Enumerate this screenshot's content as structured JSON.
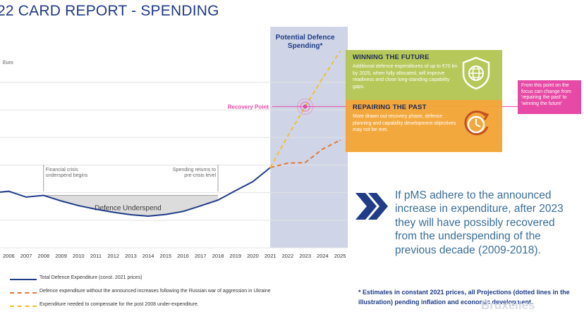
{
  "page": {
    "title": "22 CARD REPORT - SPENDING"
  },
  "chart_data": {
    "type": "line",
    "y_unit_label": "Euro",
    "x_ticks": [
      "2006",
      "2007",
      "2008",
      "2009",
      "2010",
      "2011",
      "2012",
      "2013",
      "2014",
      "2015",
      "2016",
      "2017",
      "2018",
      "2019",
      "2020",
      "2021",
      "2022",
      "2023",
      "2024",
      "2025"
    ],
    "series": [
      {
        "name": "Total Defence Expenditure (const. 2021 prices)",
        "style": "solid",
        "color": "#1f3c88",
        "x": [
          2005.5,
          2006,
          2007,
          2008,
          2009,
          2010,
          2011,
          2012,
          2013,
          2014,
          2015,
          2016,
          2017,
          2018,
          2019,
          2020,
          2021
        ],
        "values": [
          2.02,
          2.05,
          1.84,
          1.9,
          1.7,
          1.53,
          1.4,
          1.29,
          1.2,
          1.15,
          1.21,
          1.32,
          1.52,
          1.73,
          2.07,
          2.4,
          2.91
        ]
      },
      {
        "name": "Defence expenditure without the announced increases following the Russian war of aggression in Ukraine",
        "style": "dashed",
        "color": "#e07b39",
        "x": [
          2021,
          2022,
          2023,
          2024,
          2025
        ],
        "values": [
          2.91,
          3.07,
          3.09,
          3.58,
          3.9
        ]
      },
      {
        "name": "Expenditure needed to compensate for the post 2008 under-expenditure.",
        "style": "dashed",
        "color": "#f2c12e",
        "x": [
          2021,
          2022,
          2023,
          2024,
          2025
        ],
        "values": [
          2.91,
          4.05,
          5.12,
          6.15,
          7.12
        ]
      }
    ],
    "x_range": [
      2005.5,
      2025.4
    ],
    "y_range": [
      0,
      7.3
    ],
    "gridlines_y": [
      1,
      2,
      3,
      4,
      5,
      6
    ],
    "shaded_region": {
      "from": 2021,
      "to": 2025,
      "label": "Potential Defence\nSpending*",
      "color": "#cfd5e6"
    },
    "underspend_region": {
      "from": 2008,
      "to": 2018,
      "label": "Defence Underspend"
    },
    "annotations": [
      {
        "x": 2008,
        "text": "Financial crisis\nunderspend begins"
      },
      {
        "x": 2018,
        "text": "Spending returns to\npre-crisis level"
      }
    ],
    "recovery_point": {
      "x": 2023,
      "value": 5.12,
      "label": "Recovery Point"
    }
  },
  "cards": {
    "winning": {
      "title": "WINNING THE FUTURE",
      "body": "Additional defence expenditures of up to €70 bn by 2025, when fully allocated, will improve readiness and close long-standing capability gaps.",
      "icon": "shield-globe-icon",
      "color": "#b0c44c"
    },
    "repairing": {
      "title": "REPAIRING THE PAST",
      "body": "More drawn out recovery phase, defence planning and capability development objectives may not be met.",
      "icon": "clock-arrow-icon",
      "color": "#f2a334"
    }
  },
  "side_note": "From this point on the focus can change from 'repairing the past' to 'winning the future'",
  "quote": "If pMS adhere to the announced increase in expenditure, after 2023 they will have possibly recovered from the underspending of the previous decade (2009-2018).",
  "footnote": "* Estimates in constant 2021 prices, all Projections (dotted lines in the illustration) pending inflation and economic development.",
  "watermark": "Bruxelles",
  "colors": {
    "title": "#1e3a8a",
    "pink": "#e74aa6",
    "accent_blue": "#1f3c88"
  }
}
